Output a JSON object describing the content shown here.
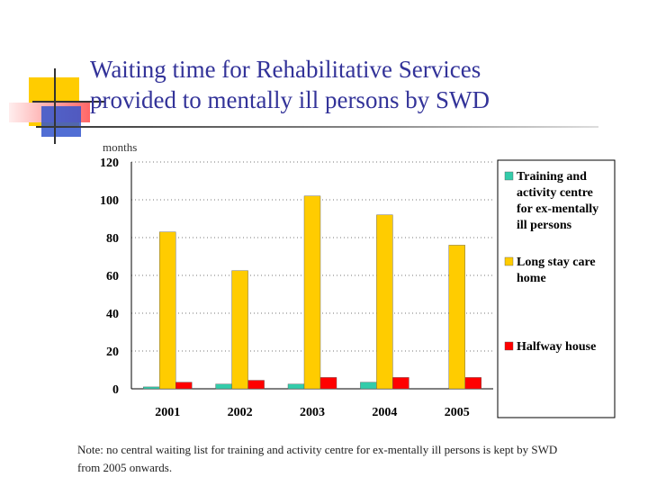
{
  "slide": {
    "title_line1": "Waiting time for Rehabilitative Services",
    "title_line2": "provided to mentally ill persons by SWD",
    "note": "Note: no central waiting list for training and activity centre for ex-mentally ill persons is kept by SWD from 2005 onwards."
  },
  "colors": {
    "title": "#333399",
    "series": [
      "#33CCAA",
      "#FFCC00",
      "#FF0000"
    ],
    "deco_yellow": "#FFCC00",
    "deco_red": "#FF6666",
    "deco_blue": "#3355CC"
  },
  "chart_data": {
    "type": "bar",
    "ylabel": "months",
    "xlabel": "",
    "title": "",
    "categories": [
      "2001",
      "2002",
      "2003",
      "2004",
      "2005"
    ],
    "ylim": [
      0,
      120
    ],
    "yticks": [
      0,
      20,
      40,
      60,
      80,
      100,
      120
    ],
    "grid": true,
    "legend_position": "right",
    "series": [
      {
        "name": "Training and activity centre for ex-mentally ill persons",
        "values": [
          1,
          2.5,
          2.5,
          3.5,
          null
        ]
      },
      {
        "name": "Long stay care home",
        "values": [
          83,
          62.5,
          102,
          92,
          76
        ]
      },
      {
        "name": "Halfway house",
        "values": [
          3.5,
          4.5,
          6,
          6,
          6
        ]
      }
    ]
  }
}
